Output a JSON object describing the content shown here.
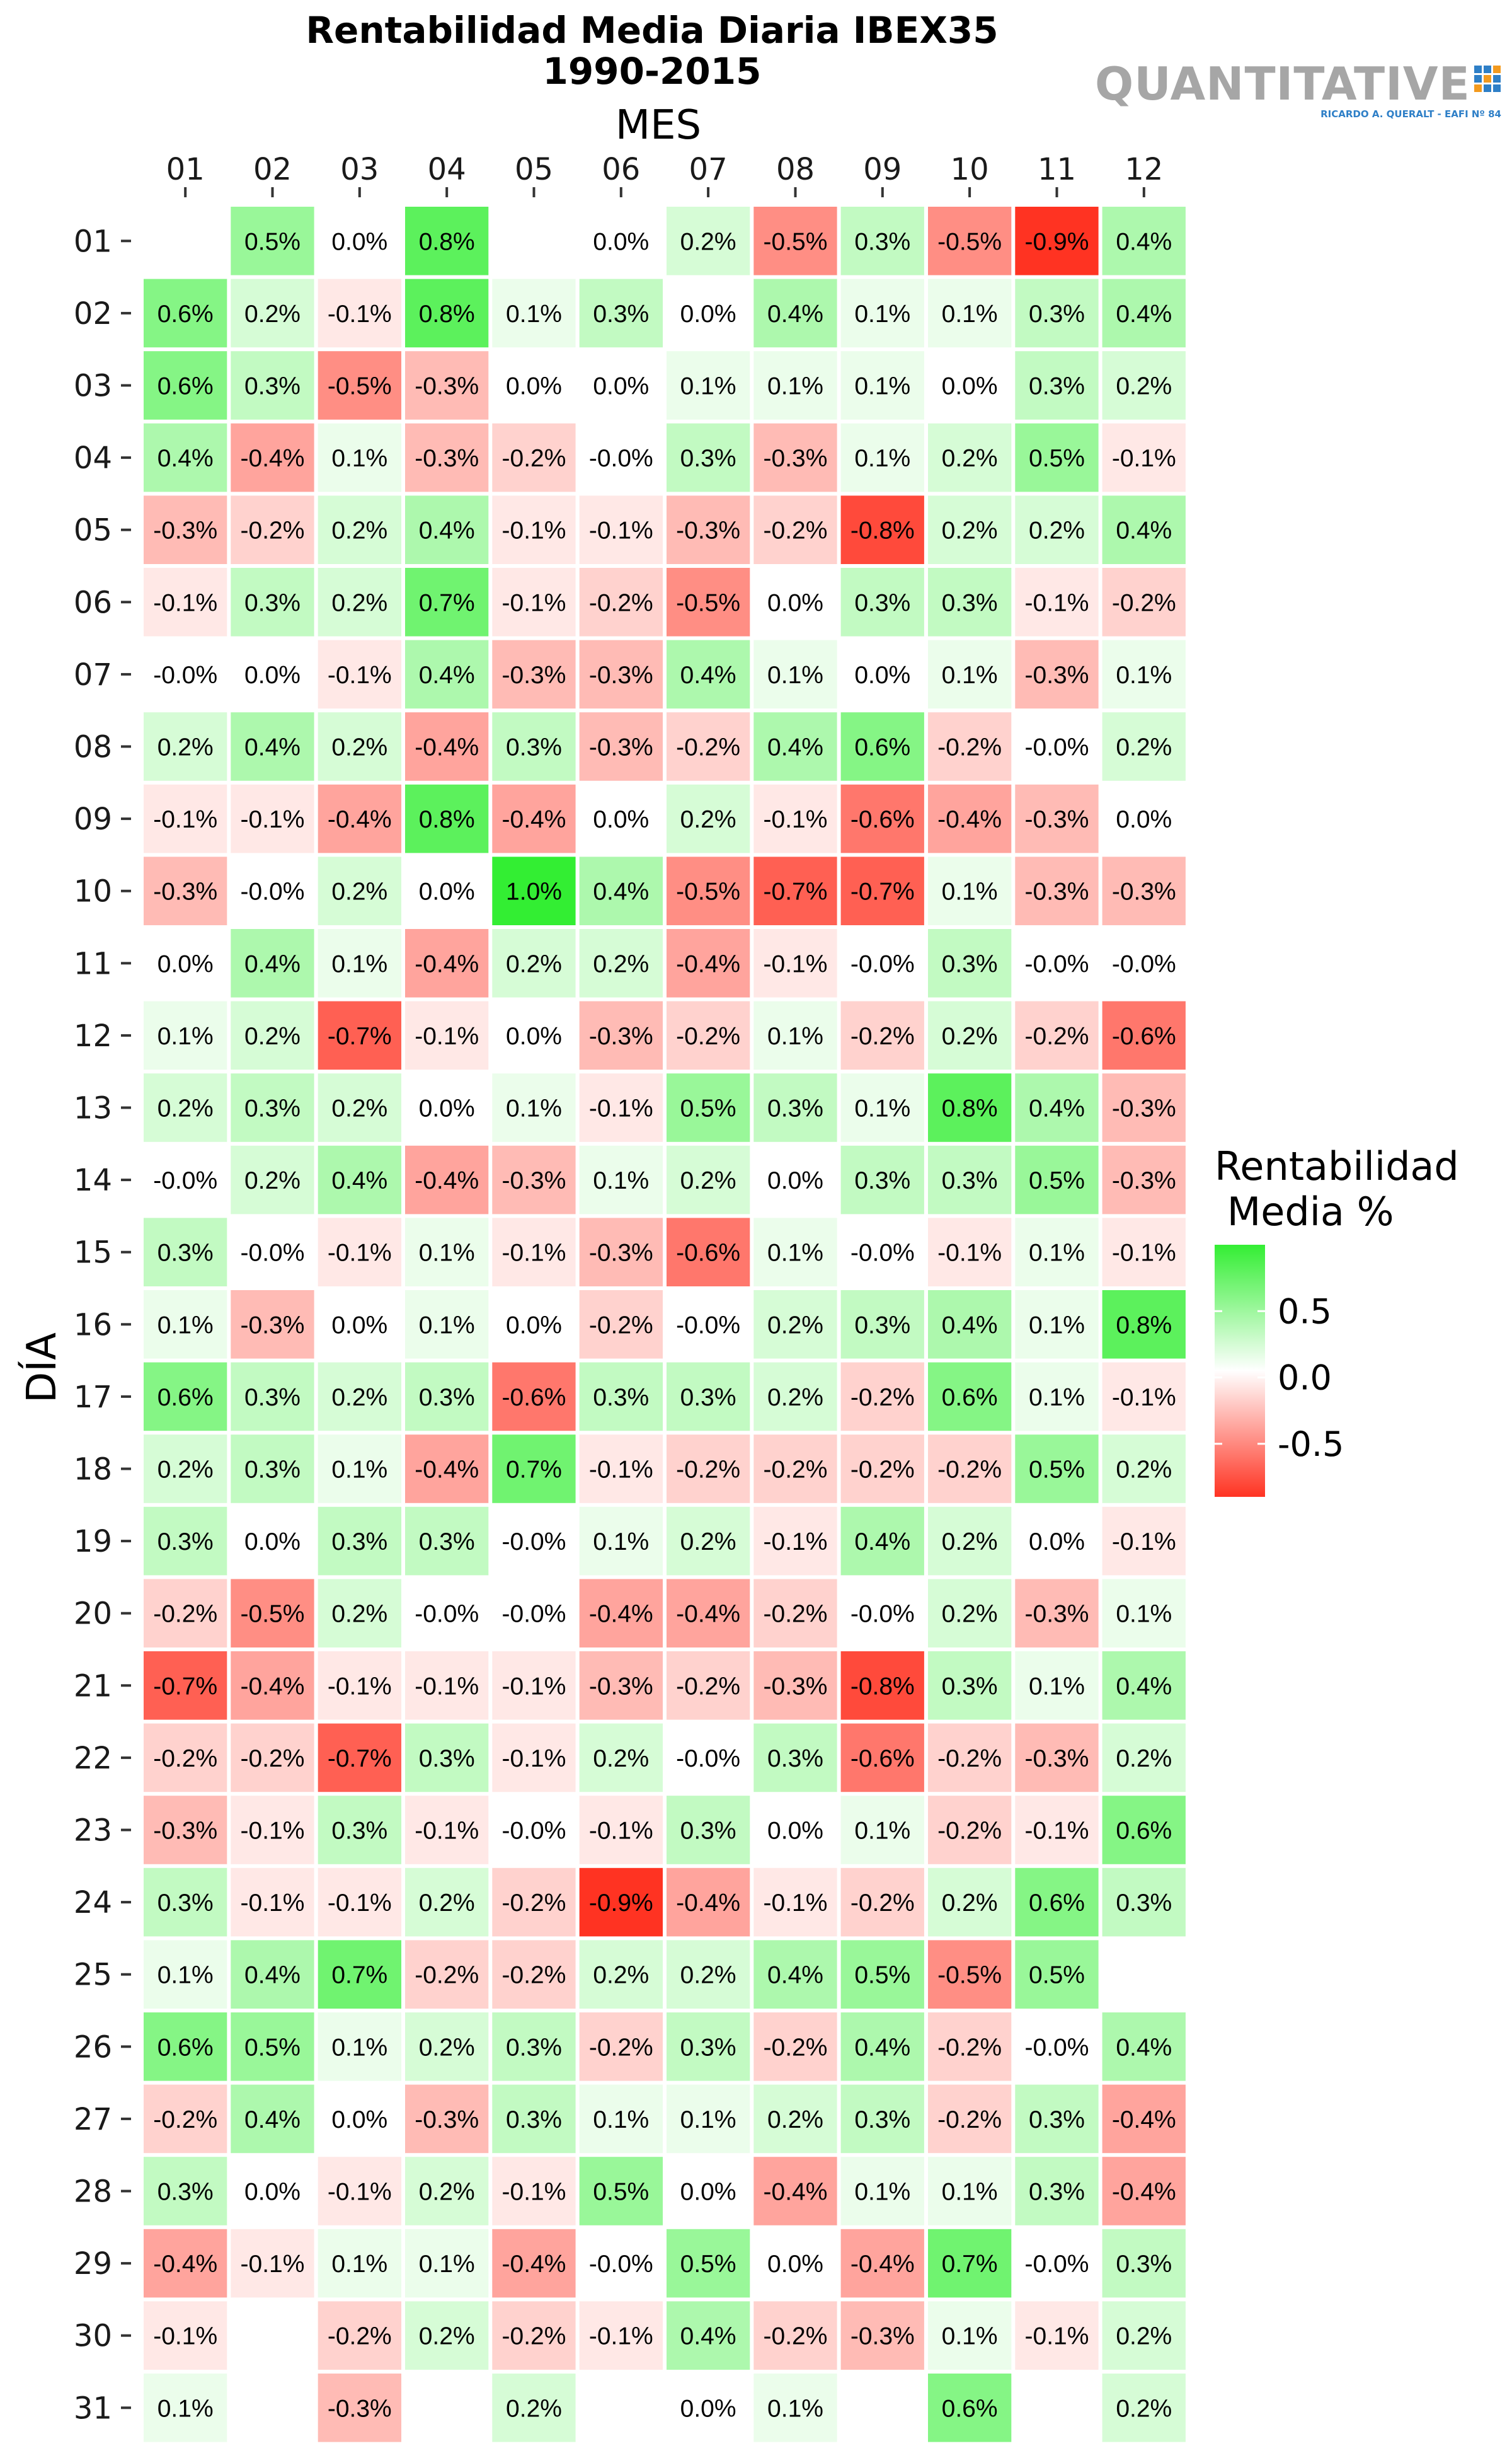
{
  "chart_data": {
    "type": "heatmap",
    "title": "Rentabilidad Media Diaria IBEX35",
    "subtitle": "1990-2015",
    "xlabel": "MES",
    "ylabel": "DÍA",
    "x_categories": [
      "01",
      "02",
      "03",
      "04",
      "05",
      "06",
      "07",
      "08",
      "09",
      "10",
      "11",
      "12"
    ],
    "y_categories": [
      "01",
      "02",
      "03",
      "04",
      "05",
      "06",
      "07",
      "08",
      "09",
      "10",
      "11",
      "12",
      "13",
      "14",
      "15",
      "16",
      "17",
      "18",
      "19",
      "20",
      "21",
      "22",
      "23",
      "24",
      "25",
      "26",
      "27",
      "28",
      "29",
      "30",
      "31"
    ],
    "values": [
      [
        null,
        0.5,
        0.0,
        0.8,
        null,
        0.0,
        0.2,
        -0.5,
        0.3,
        -0.5,
        -0.9,
        0.4
      ],
      [
        0.6,
        0.2,
        -0.1,
        0.8,
        0.1,
        0.3,
        0.0,
        0.4,
        0.1,
        0.1,
        0.3,
        0.4
      ],
      [
        0.6,
        0.3,
        -0.5,
        -0.3,
        0.0,
        0.0,
        0.1,
        0.1,
        0.1,
        0.0,
        0.3,
        0.2
      ],
      [
        0.4,
        -0.4,
        0.1,
        -0.3,
        -0.2,
        -0.0,
        0.3,
        -0.3,
        0.1,
        0.2,
        0.5,
        -0.1
      ],
      [
        -0.3,
        -0.2,
        0.2,
        0.4,
        -0.1,
        -0.1,
        -0.3,
        -0.2,
        -0.8,
        0.2,
        0.2,
        0.4
      ],
      [
        -0.1,
        0.3,
        0.2,
        0.7,
        -0.1,
        -0.2,
        -0.5,
        0.0,
        0.3,
        0.3,
        -0.1,
        -0.2
      ],
      [
        -0.0,
        0.0,
        -0.1,
        0.4,
        -0.3,
        -0.3,
        0.4,
        0.1,
        0.0,
        0.1,
        -0.3,
        0.1
      ],
      [
        0.2,
        0.4,
        0.2,
        -0.4,
        0.3,
        -0.3,
        -0.2,
        0.4,
        0.6,
        -0.2,
        -0.0,
        0.2
      ],
      [
        -0.1,
        -0.1,
        -0.4,
        0.8,
        -0.4,
        0.0,
        0.2,
        -0.1,
        -0.6,
        -0.4,
        -0.3,
        0.0
      ],
      [
        -0.3,
        -0.0,
        0.2,
        0.0,
        1.0,
        0.4,
        -0.5,
        -0.7,
        -0.7,
        0.1,
        -0.3,
        -0.3
      ],
      [
        0.0,
        0.4,
        0.1,
        -0.4,
        0.2,
        0.2,
        -0.4,
        -0.1,
        -0.0,
        0.3,
        -0.0,
        -0.0
      ],
      [
        0.1,
        0.2,
        -0.7,
        -0.1,
        0.0,
        -0.3,
        -0.2,
        0.1,
        -0.2,
        0.2,
        -0.2,
        -0.6
      ],
      [
        0.2,
        0.3,
        0.2,
        0.0,
        0.1,
        -0.1,
        0.5,
        0.3,
        0.1,
        0.8,
        0.4,
        -0.3
      ],
      [
        -0.0,
        0.2,
        0.4,
        -0.4,
        -0.3,
        0.1,
        0.2,
        0.0,
        0.3,
        0.3,
        0.5,
        -0.3
      ],
      [
        0.3,
        -0.0,
        -0.1,
        0.1,
        -0.1,
        -0.3,
        -0.6,
        0.1,
        -0.0,
        -0.1,
        0.1,
        -0.1
      ],
      [
        0.1,
        -0.3,
        0.0,
        0.1,
        0.0,
        -0.2,
        -0.0,
        0.2,
        0.3,
        0.4,
        0.1,
        0.8
      ],
      [
        0.6,
        0.3,
        0.2,
        0.3,
        -0.6,
        0.3,
        0.3,
        0.2,
        -0.2,
        0.6,
        0.1,
        -0.1
      ],
      [
        0.2,
        0.3,
        0.1,
        -0.4,
        0.7,
        -0.1,
        -0.2,
        -0.2,
        -0.2,
        -0.2,
        0.5,
        0.2
      ],
      [
        0.3,
        0.0,
        0.3,
        0.3,
        -0.0,
        0.1,
        0.2,
        -0.1,
        0.4,
        0.2,
        0.0,
        -0.1
      ],
      [
        -0.2,
        -0.5,
        0.2,
        -0.0,
        -0.0,
        -0.4,
        -0.4,
        -0.2,
        -0.0,
        0.2,
        -0.3,
        0.1
      ],
      [
        -0.7,
        -0.4,
        -0.1,
        -0.1,
        -0.1,
        -0.3,
        -0.2,
        -0.3,
        -0.8,
        0.3,
        0.1,
        0.4
      ],
      [
        -0.2,
        -0.2,
        -0.7,
        0.3,
        -0.1,
        0.2,
        -0.0,
        0.3,
        -0.6,
        -0.2,
        -0.3,
        0.2
      ],
      [
        -0.3,
        -0.1,
        0.3,
        -0.1,
        -0.0,
        -0.1,
        0.3,
        0.0,
        0.1,
        -0.2,
        -0.1,
        0.6
      ],
      [
        0.3,
        -0.1,
        -0.1,
        0.2,
        -0.2,
        -0.9,
        -0.4,
        -0.1,
        -0.2,
        0.2,
        0.6,
        0.3
      ],
      [
        0.1,
        0.4,
        0.7,
        -0.2,
        -0.2,
        0.2,
        0.2,
        0.4,
        0.5,
        -0.5,
        0.5,
        null
      ],
      [
        0.6,
        0.5,
        0.1,
        0.2,
        0.3,
        -0.2,
        0.3,
        -0.2,
        0.4,
        -0.2,
        -0.0,
        0.4
      ],
      [
        -0.2,
        0.4,
        0.0,
        -0.3,
        0.3,
        0.1,
        0.1,
        0.2,
        0.3,
        -0.2,
        0.3,
        -0.4
      ],
      [
        0.3,
        0.0,
        -0.1,
        0.2,
        -0.1,
        0.5,
        0.0,
        -0.4,
        0.1,
        0.1,
        0.3,
        -0.4
      ],
      [
        -0.4,
        -0.1,
        0.1,
        0.1,
        -0.4,
        -0.0,
        0.5,
        0.0,
        -0.4,
        0.7,
        -0.0,
        0.3
      ],
      [
        -0.1,
        null,
        -0.2,
        0.2,
        -0.2,
        -0.1,
        0.4,
        -0.2,
        -0.3,
        0.1,
        -0.1,
        0.2
      ],
      [
        0.1,
        null,
        -0.3,
        null,
        0.2,
        null,
        0.0,
        0.1,
        null,
        0.6,
        null,
        0.2
      ]
    ],
    "value_format": "%",
    "legend": {
      "title_lines": [
        "Rentabilidad",
        " Media %"
      ],
      "ticks": [
        0.5,
        0.0,
        -0.5
      ],
      "tick_labels": [
        "0.5",
        "0.0",
        "-0.5"
      ],
      "range": [
        -0.9,
        1.0
      ],
      "placement": "right"
    },
    "colors": {
      "high": "#33ee33",
      "mid": "#ffffff",
      "low": "#ff3322"
    },
    "grid": false
  },
  "watermark": {
    "main": "QUANTITATIVE",
    "sub": "RICARDO A. QUERALT - EAFI Nº 84"
  }
}
